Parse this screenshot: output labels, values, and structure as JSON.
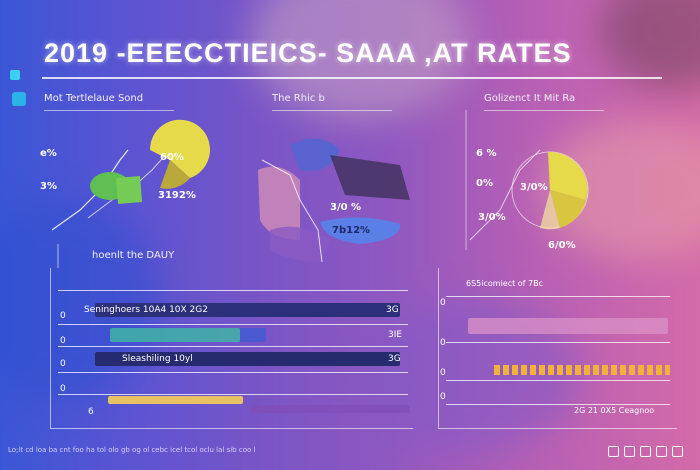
{
  "title": "2019 -EEECCTIEICS- SAAA ,AT RATES",
  "panels": [
    {
      "label": "Mot Tertlelaue Sond"
    },
    {
      "label": "The Rhic b"
    },
    {
      "label": "Golizenct It Mit Ra"
    }
  ],
  "section_label": "hoenlt the DAUY",
  "left_bars": [
    {
      "label": "Seninghoers 10A4 10X 2G2",
      "right": "3G"
    },
    {
      "label": "",
      "right": "3IE"
    },
    {
      "label": "Sleashiling 10yl",
      "right": "3G"
    },
    {
      "label": "",
      "right": ""
    }
  ],
  "row_numbers": [
    "0",
    "0",
    "0",
    "0",
    "6"
  ],
  "right_header": "6S5icomiect of 7Bc",
  "right_row_numbers": [
    "0",
    "0",
    "0",
    "0"
  ],
  "right_footer": "2G 21 0X5 Ceagnoo",
  "annotations": {
    "pie1_value": "60%",
    "bar_value": "3192%",
    "mid_value": "3/0 %",
    "mid_value2": "7b12%",
    "pie3_value": "6 %",
    "pie3_b": "0%",
    "pie3_c": "3/0%",
    "pie3_d": "3/0%",
    "pie3_e": "6/0%",
    "left_a": "e%",
    "left_b": "3%"
  },
  "footer": "Lo;lt cd loa ba cnt foo ha tol olo gb og ol cebc icel tcol oclu lal sib coo l",
  "colors": {
    "yellow": "#e6d94a",
    "green": "#5fbf52",
    "blue_bar": "#5a7fe6",
    "dark_bar": "#2c2f7a",
    "teal_bar": "#3fb4a6",
    "strip_orange": "#f0b23a",
    "pink_bar": "#d991c7"
  }
}
